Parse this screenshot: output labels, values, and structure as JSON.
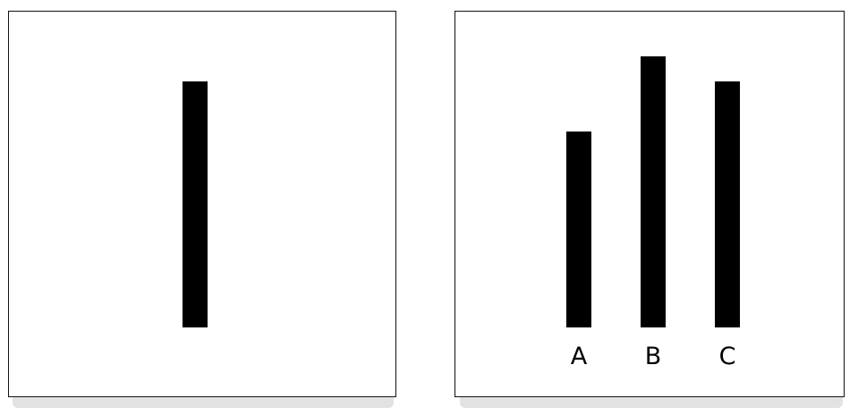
{
  "reference_panel": {
    "bar_height": 1.0
  },
  "comparison_panel": {
    "bars": [
      {
        "label": "A",
        "height": 0.8
      },
      {
        "label": "B",
        "height": 1.1
      },
      {
        "label": "C",
        "height": 1.0
      }
    ]
  },
  "colors": {
    "bar": "#000000",
    "panel_border": "#111111",
    "panel_shadow": "#e2e2e2",
    "background": "#ffffff"
  }
}
